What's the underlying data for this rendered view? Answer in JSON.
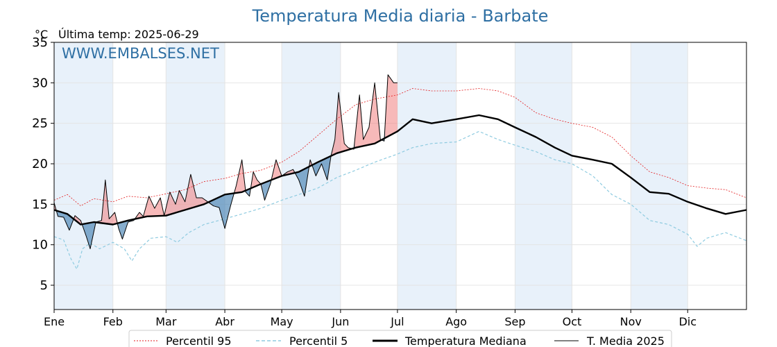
{
  "title": "Temperatura Media diaria - Barbate",
  "unit_label": "°C",
  "last_temp_label": "Última temp: 2025-06-29",
  "watermark": "WWW.EMBALSES.NET",
  "legend": {
    "p95": "Percentil 95",
    "p5": "Percentil 5",
    "median": "Temperatura Mediana",
    "current": "T. Media 2025"
  },
  "colors": {
    "p95": "#e31a1c",
    "p5": "#8ecbe0",
    "median": "#000000",
    "current": "#000000",
    "above_fill": "#f08080",
    "below_fill": "#4682b4",
    "band": "#e8f1fa",
    "title": "#2e6fa3"
  },
  "chart_data": {
    "type": "line",
    "title": "Temperatura Media diaria - Barbate",
    "ylabel": "°C",
    "ylim": [
      2,
      35
    ],
    "xlim": [
      1,
      366
    ],
    "yticks": [
      5,
      10,
      15,
      20,
      25,
      30,
      35
    ],
    "months": [
      {
        "label": "Ene",
        "day": 1
      },
      {
        "label": "Feb",
        "day": 32
      },
      {
        "label": "Mar",
        "day": 60
      },
      {
        "label": "Abr",
        "day": 91
      },
      {
        "label": "May",
        "day": 121
      },
      {
        "label": "Jun",
        "day": 152
      },
      {
        "label": "Jul",
        "day": 182
      },
      {
        "label": "Ago",
        "day": 213
      },
      {
        "label": "Sep",
        "day": 244
      },
      {
        "label": "Oct",
        "day": 274
      },
      {
        "label": "Nov",
        "day": 305
      },
      {
        "label": "Dic",
        "day": 335
      }
    ],
    "grid": true,
    "legend_position": "bottom",
    "series": [
      {
        "name": "Percentil 95",
        "points": [
          [
            1,
            15.5
          ],
          [
            8,
            16.2
          ],
          [
            15,
            14.8
          ],
          [
            22,
            15.7
          ],
          [
            32,
            15.3
          ],
          [
            40,
            16.0
          ],
          [
            50,
            15.8
          ],
          [
            60,
            16.3
          ],
          [
            70,
            16.8
          ],
          [
            80,
            17.8
          ],
          [
            91,
            18.2
          ],
          [
            100,
            18.8
          ],
          [
            110,
            19.2
          ],
          [
            121,
            20.2
          ],
          [
            130,
            21.5
          ],
          [
            140,
            23.5
          ],
          [
            150,
            25.5
          ],
          [
            160,
            27.3
          ],
          [
            170,
            28.0
          ],
          [
            182,
            28.5
          ],
          [
            190,
            29.3
          ],
          [
            200,
            29.0
          ],
          [
            213,
            29.0
          ],
          [
            225,
            29.3
          ],
          [
            235,
            29.0
          ],
          [
            244,
            28.2
          ],
          [
            255,
            26.3
          ],
          [
            265,
            25.5
          ],
          [
            274,
            25.0
          ],
          [
            285,
            24.5
          ],
          [
            295,
            23.3
          ],
          [
            305,
            21.0
          ],
          [
            315,
            19.0
          ],
          [
            325,
            18.3
          ],
          [
            335,
            17.3
          ],
          [
            345,
            17.0
          ],
          [
            355,
            16.8
          ],
          [
            366,
            15.8
          ]
        ]
      },
      {
        "name": "Percentil 5",
        "points": [
          [
            1,
            11.0
          ],
          [
            6,
            10.6
          ],
          [
            10,
            8.2
          ],
          [
            13,
            7.0
          ],
          [
            16,
            9.5
          ],
          [
            20,
            10.2
          ],
          [
            25,
            9.5
          ],
          [
            32,
            10.3
          ],
          [
            38,
            9.5
          ],
          [
            42,
            8.0
          ],
          [
            46,
            9.5
          ],
          [
            52,
            10.8
          ],
          [
            60,
            11.0
          ],
          [
            66,
            10.3
          ],
          [
            72,
            11.5
          ],
          [
            80,
            12.5
          ],
          [
            91,
            13.2
          ],
          [
            100,
            13.8
          ],
          [
            110,
            14.5
          ],
          [
            121,
            15.5
          ],
          [
            130,
            16.2
          ],
          [
            140,
            17.0
          ],
          [
            150,
            18.3
          ],
          [
            160,
            19.2
          ],
          [
            170,
            20.2
          ],
          [
            182,
            21.2
          ],
          [
            190,
            22.0
          ],
          [
            200,
            22.5
          ],
          [
            213,
            22.7
          ],
          [
            225,
            24.0
          ],
          [
            235,
            23.0
          ],
          [
            244,
            22.3
          ],
          [
            255,
            21.5
          ],
          [
            265,
            20.5
          ],
          [
            274,
            20.0
          ],
          [
            285,
            18.5
          ],
          [
            295,
            16.2
          ],
          [
            305,
            15.0
          ],
          [
            315,
            13.0
          ],
          [
            325,
            12.5
          ],
          [
            335,
            11.3
          ],
          [
            340,
            9.8
          ],
          [
            345,
            10.8
          ],
          [
            355,
            11.5
          ],
          [
            366,
            10.5
          ]
        ]
      },
      {
        "name": "Temperatura Mediana",
        "points": [
          [
            1,
            14.3
          ],
          [
            8,
            13.8
          ],
          [
            15,
            12.5
          ],
          [
            22,
            12.8
          ],
          [
            32,
            12.5
          ],
          [
            40,
            13.0
          ],
          [
            50,
            13.5
          ],
          [
            60,
            13.6
          ],
          [
            70,
            14.3
          ],
          [
            80,
            15.0
          ],
          [
            91,
            16.2
          ],
          [
            100,
            16.5
          ],
          [
            110,
            17.5
          ],
          [
            121,
            18.5
          ],
          [
            130,
            19.0
          ],
          [
            140,
            20.2
          ],
          [
            150,
            21.3
          ],
          [
            160,
            22.0
          ],
          [
            170,
            22.5
          ],
          [
            182,
            24.0
          ],
          [
            190,
            25.5
          ],
          [
            200,
            25.0
          ],
          [
            213,
            25.5
          ],
          [
            225,
            26.0
          ],
          [
            235,
            25.5
          ],
          [
            244,
            24.5
          ],
          [
            255,
            23.3
          ],
          [
            265,
            22.0
          ],
          [
            274,
            21.0
          ],
          [
            285,
            20.5
          ],
          [
            295,
            20.0
          ],
          [
            305,
            18.3
          ],
          [
            315,
            16.5
          ],
          [
            325,
            16.3
          ],
          [
            335,
            15.3
          ],
          [
            345,
            14.5
          ],
          [
            355,
            13.8
          ],
          [
            366,
            14.3
          ]
        ]
      },
      {
        "name": "T. Media 2025",
        "points": [
          [
            1,
            15.2
          ],
          [
            3,
            13.5
          ],
          [
            6,
            13.4
          ],
          [
            9,
            11.8
          ],
          [
            12,
            13.6
          ],
          [
            15,
            13.0
          ],
          [
            18,
            11.0
          ],
          [
            20,
            9.5
          ],
          [
            23,
            12.8
          ],
          [
            26,
            13.0
          ],
          [
            28,
            18.0
          ],
          [
            30,
            13.2
          ],
          [
            33,
            14.0
          ],
          [
            35,
            12.0
          ],
          [
            37,
            10.7
          ],
          [
            40,
            12.8
          ],
          [
            43,
            13.0
          ],
          [
            46,
            14.0
          ],
          [
            48,
            13.5
          ],
          [
            51,
            16.0
          ],
          [
            54,
            14.5
          ],
          [
            57,
            15.8
          ],
          [
            59,
            13.6
          ],
          [
            62,
            16.5
          ],
          [
            65,
            15.0
          ],
          [
            67,
            16.7
          ],
          [
            70,
            15.3
          ],
          [
            73,
            18.7
          ],
          [
            76,
            15.8
          ],
          [
            79,
            15.8
          ],
          [
            82,
            15.3
          ],
          [
            85,
            14.8
          ],
          [
            88,
            14.6
          ],
          [
            91,
            12.0
          ],
          [
            94,
            14.8
          ],
          [
            97,
            17.3
          ],
          [
            100,
            20.5
          ],
          [
            102,
            16.5
          ],
          [
            104,
            16.0
          ],
          [
            106,
            19.0
          ],
          [
            108,
            18.0
          ],
          [
            110,
            17.5
          ],
          [
            112,
            15.5
          ],
          [
            115,
            17.5
          ],
          [
            118,
            20.5
          ],
          [
            121,
            18.5
          ],
          [
            124,
            19.0
          ],
          [
            127,
            19.3
          ],
          [
            130,
            18.0
          ],
          [
            133,
            16.0
          ],
          [
            136,
            20.5
          ],
          [
            139,
            18.5
          ],
          [
            142,
            20.0
          ],
          [
            145,
            18.0
          ],
          [
            147,
            21.0
          ],
          [
            149,
            23.0
          ],
          [
            151,
            28.8
          ],
          [
            154,
            22.5
          ],
          [
            156,
            22.0
          ],
          [
            159,
            21.8
          ],
          [
            162,
            28.5
          ],
          [
            164,
            23.0
          ],
          [
            167,
            24.5
          ],
          [
            170,
            30.0
          ],
          [
            173,
            23.0
          ],
          [
            175,
            22.8
          ],
          [
            177,
            31.0
          ],
          [
            180,
            30.0
          ],
          [
            182,
            30.0
          ]
        ]
      }
    ]
  }
}
